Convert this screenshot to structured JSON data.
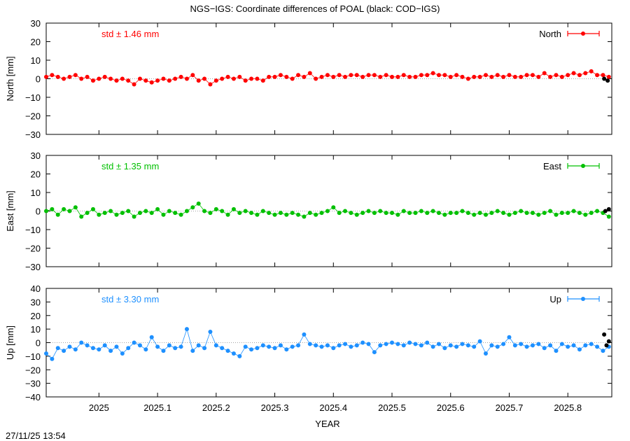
{
  "title": "NGS−IGS: Coordinate differences of POAL (black: COD−IGS)",
  "timestamp": "27/11/25 13:54",
  "colors": {
    "north": "#ff0000",
    "east": "#00c000",
    "up": "#1e90ff",
    "cod": "#000000"
  },
  "chart_data": [
    {
      "type": "scatter",
      "ylabel": "North [mm]",
      "legend": "North",
      "legend_position": "top-right",
      "std_label": "std ± 1.46 mm",
      "ylim": [
        -30,
        30
      ],
      "yticks": [
        "30",
        "20",
        "10",
        "0",
        "−10",
        "−20",
        "−30"
      ],
      "ytick_values": [
        30,
        20,
        10,
        0,
        -10,
        -20,
        -30
      ],
      "xlim": [
        2024.91,
        2025.875
      ],
      "x": [
        2024.91,
        2024.92,
        2024.93,
        2024.94,
        2024.95,
        2024.96,
        2024.97,
        2024.98,
        2024.99,
        2025.0,
        2025.01,
        2025.02,
        2025.03,
        2025.04,
        2025.05,
        2025.06,
        2025.07,
        2025.08,
        2025.09,
        2025.1,
        2025.11,
        2025.12,
        2025.13,
        2025.14,
        2025.15,
        2025.16,
        2025.17,
        2025.18,
        2025.19,
        2025.2,
        2025.21,
        2025.22,
        2025.23,
        2025.24,
        2025.25,
        2025.26,
        2025.27,
        2025.28,
        2025.29,
        2025.3,
        2025.31,
        2025.32,
        2025.33,
        2025.34,
        2025.35,
        2025.36,
        2025.37,
        2025.38,
        2025.39,
        2025.4,
        2025.41,
        2025.42,
        2025.43,
        2025.44,
        2025.45,
        2025.46,
        2025.47,
        2025.48,
        2025.49,
        2025.5,
        2025.51,
        2025.52,
        2025.53,
        2025.54,
        2025.55,
        2025.56,
        2025.57,
        2025.58,
        2025.59,
        2025.6,
        2025.61,
        2025.62,
        2025.63,
        2025.64,
        2025.65,
        2025.66,
        2025.67,
        2025.68,
        2025.69,
        2025.7,
        2025.71,
        2025.72,
        2025.73,
        2025.74,
        2025.75,
        2025.76,
        2025.77,
        2025.78,
        2025.79,
        2025.8,
        2025.81,
        2025.82,
        2025.83,
        2025.84,
        2025.85,
        2025.86,
        2025.87
      ],
      "y": [
        1,
        2,
        1,
        0,
        1,
        2,
        0,
        1,
        -1,
        0,
        1,
        0,
        -1,
        0,
        -1,
        -3,
        0,
        -1,
        -2,
        -1,
        0,
        -1,
        0,
        1,
        0,
        2,
        -1,
        0,
        -3,
        -1,
        0,
        1,
        0,
        1,
        -1,
        0,
        0,
        -1,
        1,
        1,
        2,
        1,
        0,
        2,
        1,
        3,
        0,
        1,
        2,
        1,
        2,
        1,
        2,
        2,
        1,
        2,
        2,
        1,
        2,
        1,
        1,
        2,
        1,
        1,
        2,
        2,
        3,
        2,
        2,
        1,
        2,
        1,
        0,
        1,
        1,
        2,
        1,
        2,
        1,
        2,
        1,
        1,
        2,
        2,
        1,
        3,
        1,
        2,
        1,
        2,
        3,
        2,
        3,
        4,
        2,
        2,
        1
      ],
      "cod_x": [
        2025.862,
        2025.868
      ],
      "cod_y": [
        0,
        -1
      ]
    },
    {
      "type": "scatter",
      "ylabel": "East [mm]",
      "legend": "East",
      "legend_position": "top-right",
      "std_label": "std ± 1.35 mm",
      "ylim": [
        -30,
        30
      ],
      "yticks": [
        "30",
        "20",
        "10",
        "0",
        "−10",
        "−20",
        "−30"
      ],
      "ytick_values": [
        30,
        20,
        10,
        0,
        -10,
        -20,
        -30
      ],
      "xlim": [
        2024.91,
        2025.875
      ],
      "x": [
        2024.91,
        2024.92,
        2024.93,
        2024.94,
        2024.95,
        2024.96,
        2024.97,
        2024.98,
        2024.99,
        2025.0,
        2025.01,
        2025.02,
        2025.03,
        2025.04,
        2025.05,
        2025.06,
        2025.07,
        2025.08,
        2025.09,
        2025.1,
        2025.11,
        2025.12,
        2025.13,
        2025.14,
        2025.15,
        2025.16,
        2025.17,
        2025.18,
        2025.19,
        2025.2,
        2025.21,
        2025.22,
        2025.23,
        2025.24,
        2025.25,
        2025.26,
        2025.27,
        2025.28,
        2025.29,
        2025.3,
        2025.31,
        2025.32,
        2025.33,
        2025.34,
        2025.35,
        2025.36,
        2025.37,
        2025.38,
        2025.39,
        2025.4,
        2025.41,
        2025.42,
        2025.43,
        2025.44,
        2025.45,
        2025.46,
        2025.47,
        2025.48,
        2025.49,
        2025.5,
        2025.51,
        2025.52,
        2025.53,
        2025.54,
        2025.55,
        2025.56,
        2025.57,
        2025.58,
        2025.59,
        2025.6,
        2025.61,
        2025.62,
        2025.63,
        2025.64,
        2025.65,
        2025.66,
        2025.67,
        2025.68,
        2025.69,
        2025.7,
        2025.71,
        2025.72,
        2025.73,
        2025.74,
        2025.75,
        2025.76,
        2025.77,
        2025.78,
        2025.79,
        2025.8,
        2025.81,
        2025.82,
        2025.83,
        2025.84,
        2025.85,
        2025.86,
        2025.87
      ],
      "y": [
        0,
        1,
        -2,
        1,
        0,
        2,
        -3,
        -1,
        1,
        -2,
        -1,
        0,
        -2,
        -1,
        0,
        -3,
        -1,
        0,
        -1,
        1,
        -2,
        0,
        -1,
        -2,
        0,
        2,
        4,
        0,
        -1,
        1,
        0,
        -2,
        1,
        -1,
        0,
        -1,
        -2,
        0,
        -1,
        -2,
        -1,
        -2,
        -1,
        -2,
        -3,
        -1,
        -2,
        -1,
        0,
        2,
        -1,
        0,
        -1,
        -2,
        -1,
        0,
        -1,
        0,
        -1,
        -1,
        -2,
        0,
        -1,
        -1,
        0,
        -1,
        0,
        -1,
        -2,
        -1,
        -1,
        0,
        -1,
        -2,
        -1,
        -2,
        -1,
        0,
        -1,
        -2,
        -1,
        0,
        -1,
        -1,
        -2,
        -1,
        0,
        -2,
        -1,
        -1,
        0,
        -1,
        -2,
        -1,
        0,
        -1,
        -3
      ],
      "cod_x": [
        2025.864,
        2025.87
      ],
      "cod_y": [
        0,
        1
      ]
    },
    {
      "type": "scatter",
      "ylabel": "Up [mm]",
      "legend": "Up",
      "legend_position": "top-right",
      "std_label": "std ± 3.30 mm",
      "ylim": [
        -40,
        40
      ],
      "yticks": [
        "40",
        "30",
        "20",
        "10",
        "0",
        "−10",
        "−20",
        "−30",
        "−40"
      ],
      "ytick_values": [
        40,
        30,
        20,
        10,
        0,
        -10,
        -20,
        -30,
        -40
      ],
      "xlim": [
        2024.91,
        2025.875
      ],
      "x": [
        2024.91,
        2024.92,
        2024.93,
        2024.94,
        2024.95,
        2024.96,
        2024.97,
        2024.98,
        2024.99,
        2025.0,
        2025.01,
        2025.02,
        2025.03,
        2025.04,
        2025.05,
        2025.06,
        2025.07,
        2025.08,
        2025.09,
        2025.1,
        2025.11,
        2025.12,
        2025.13,
        2025.14,
        2025.15,
        2025.16,
        2025.17,
        2025.18,
        2025.19,
        2025.2,
        2025.21,
        2025.22,
        2025.23,
        2025.24,
        2025.25,
        2025.26,
        2025.27,
        2025.28,
        2025.29,
        2025.3,
        2025.31,
        2025.32,
        2025.33,
        2025.34,
        2025.35,
        2025.36,
        2025.37,
        2025.38,
        2025.39,
        2025.4,
        2025.41,
        2025.42,
        2025.43,
        2025.44,
        2025.45,
        2025.46,
        2025.47,
        2025.48,
        2025.49,
        2025.5,
        2025.51,
        2025.52,
        2025.53,
        2025.54,
        2025.55,
        2025.56,
        2025.57,
        2025.58,
        2025.59,
        2025.6,
        2025.61,
        2025.62,
        2025.63,
        2025.64,
        2025.65,
        2025.66,
        2025.67,
        2025.68,
        2025.69,
        2025.7,
        2025.71,
        2025.72,
        2025.73,
        2025.74,
        2025.75,
        2025.76,
        2025.77,
        2025.78,
        2025.79,
        2025.8,
        2025.81,
        2025.82,
        2025.83,
        2025.84,
        2025.85,
        2025.86,
        2025.87
      ],
      "y": [
        -8,
        -12,
        -4,
        -6,
        -3,
        -5,
        0,
        -2,
        -4,
        -5,
        -2,
        -6,
        -3,
        -8,
        -4,
        0,
        -2,
        -5,
        4,
        -3,
        -6,
        -2,
        -4,
        -3,
        10,
        -6,
        -2,
        -4,
        8,
        -2,
        -4,
        -6,
        -8,
        -10,
        -3,
        -5,
        -4,
        -2,
        -3,
        -4,
        -2,
        -5,
        -3,
        -2,
        6,
        -1,
        -2,
        -3,
        -2,
        -4,
        -2,
        -1,
        -3,
        -2,
        0,
        -1,
        -7,
        -2,
        -1,
        0,
        -1,
        -2,
        0,
        -1,
        -2,
        0,
        -3,
        -1,
        -4,
        -2,
        -3,
        -1,
        -2,
        -3,
        1,
        -8,
        -2,
        -3,
        -1,
        4,
        -2,
        -1,
        -3,
        -2,
        -1,
        -4,
        -2,
        -6,
        -1,
        -3,
        -2,
        -5,
        -2,
        -1,
        -3,
        -6,
        -3
      ],
      "cod_x": [
        2025.862,
        2025.866,
        2025.87
      ],
      "cod_y": [
        6,
        -2,
        1
      ]
    }
  ],
  "xaxis": {
    "label": "YEAR",
    "tick_labels": [
      "2025",
      "2025.1",
      "2025.2",
      "2025.3",
      "2025.4",
      "2025.5",
      "2025.6",
      "2025.7",
      "2025.8"
    ],
    "tick_values": [
      2025.0,
      2025.1,
      2025.2,
      2025.3,
      2025.4,
      2025.5,
      2025.6,
      2025.7,
      2025.8
    ]
  }
}
